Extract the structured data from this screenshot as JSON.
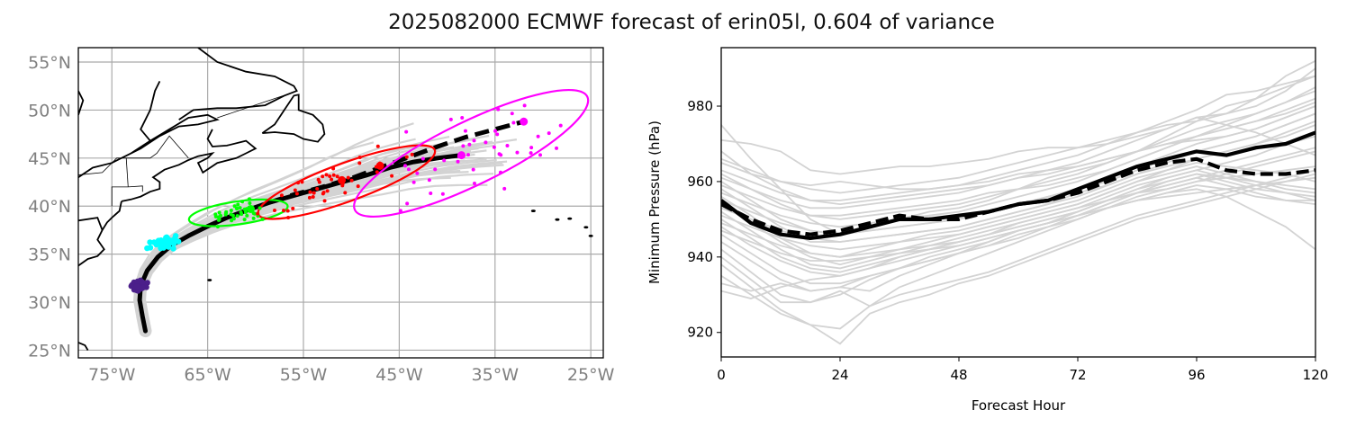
{
  "title": "2025082000 ECMWF forecast of erin05l, 0.604 of variance",
  "chart_data": [
    {
      "type": "scatter",
      "name": "track-map",
      "title": "",
      "xlabel": "",
      "ylabel": "",
      "xlim": [
        -78.5,
        -23.7
      ],
      "ylim": [
        24.2,
        56.5
      ],
      "grid": true,
      "x_ticks": [
        -75,
        -65,
        -55,
        -45,
        -35,
        -25
      ],
      "x_tick_labels": [
        "75°W",
        "65°W",
        "55°W",
        "45°W",
        "35°W",
        "25°W"
      ],
      "y_ticks": [
        25,
        30,
        35,
        40,
        45,
        50,
        55
      ],
      "y_tick_labels": [
        "25°N",
        "30°N",
        "35°N",
        "40°N",
        "45°N",
        "50°N",
        "55°N"
      ],
      "ensemble_mean_track": {
        "style": "solid black",
        "lon": [
          -71.5,
          -71.8,
          -72.1,
          -72.0,
          -71.3,
          -70.2,
          -68.8,
          -67.0,
          -65.0,
          -63.0,
          -60.8,
          -58.5,
          -56.0,
          -53.5,
          -51.0,
          -48.5,
          -46.0,
          -43.5,
          -41.0,
          -38.5
        ],
        "lat": [
          27.0,
          28.5,
          30.2,
          31.7,
          33.3,
          34.7,
          35.9,
          36.9,
          37.9,
          38.8,
          39.6,
          40.4,
          41.1,
          41.8,
          42.5,
          43.2,
          44.0,
          44.6,
          45.0,
          45.3
        ]
      },
      "deterministic_track": {
        "style": "dashed black",
        "lon": [
          -58.5,
          -56.0,
          -53.0,
          -50.0,
          -47.0,
          -44.0,
          -41.0,
          -38.0,
          -35.0,
          -32.0
        ],
        "lat": [
          40.4,
          41.2,
          42.0,
          42.9,
          44.0,
          45.1,
          46.2,
          47.2,
          48.0,
          48.8
        ]
      },
      "ellipses": [
        {
          "name": "green-ellipse",
          "color": "#00ff00",
          "center": [
            -61.8,
            39.3
          ],
          "semi_major_deg": 5.2,
          "semi_minor_deg": 1.2,
          "angle_deg": 8
        },
        {
          "name": "red-ellipse",
          "color": "#ff0000",
          "center": [
            -50.5,
            42.5
          ],
          "semi_major_deg": 9.8,
          "semi_minor_deg": 2.0,
          "angle_deg": 20
        },
        {
          "name": "magenta-ellipse",
          "color": "#ff00ff",
          "center": [
            -37.5,
            45.5
          ],
          "semi_major_deg": 13.5,
          "semi_minor_deg": 3.3,
          "angle_deg": 26
        }
      ],
      "scatter_groups": [
        {
          "name": "purple-positions",
          "color": "#4b1f8a",
          "lon_center": -72.2,
          "lat_center": 31.7,
          "spread": [
            0.8,
            0.5
          ],
          "count": 30
        },
        {
          "name": "cyan-positions",
          "color": "#00ffff",
          "lon_center": -69.5,
          "lat_center": 36.2,
          "spread": [
            1.4,
            0.6
          ],
          "count": 40
        },
        {
          "name": "green-positions",
          "color": "#00ff00",
          "lon_center": -62.0,
          "lat_center": 39.3,
          "spread": [
            3.5,
            1.0
          ],
          "count": 40
        },
        {
          "name": "red-positions",
          "color": "#ff0000",
          "lon_center": -51.0,
          "lat_center": 42.5,
          "spread": [
            7.0,
            1.8
          ],
          "count": 45
        },
        {
          "name": "magenta-positions",
          "color": "#ff00ff",
          "lon_center": -37.0,
          "lat_center": 45.5,
          "spread": [
            10.0,
            4.0
          ],
          "count": 45
        }
      ],
      "highlight_points": [
        {
          "color": "#ff0000",
          "lon": -51.0,
          "lat": 42.7
        },
        {
          "color": "#ff0000",
          "lon": -47.0,
          "lat": 44.2
        },
        {
          "color": "#ff00ff",
          "lon": -38.5,
          "lat": 45.3
        },
        {
          "color": "#ff00ff",
          "lon": -32.0,
          "lat": 48.8
        },
        {
          "color": "#00ff00",
          "lon": -60.5,
          "lat": 39.7
        }
      ]
    },
    {
      "type": "line",
      "name": "pressure-chart",
      "title": "",
      "xlabel": "Forecast Hour",
      "ylabel": "Minimum Pressure (hPa)",
      "xlim": [
        0,
        120
      ],
      "ylim": [
        913.5,
        995.5
      ],
      "grid": false,
      "x_ticks": [
        0,
        24,
        48,
        72,
        96,
        120
      ],
      "y_ticks": [
        920,
        940,
        960,
        980
      ],
      "x": [
        0,
        6,
        12,
        18,
        24,
        30,
        36,
        42,
        48,
        54,
        60,
        66,
        72,
        78,
        84,
        90,
        96,
        102,
        108,
        114,
        120
      ],
      "series": [
        {
          "name": "ensemble-mean",
          "style": "solid black",
          "values": [
            955,
            949,
            946,
            945,
            946,
            948,
            950,
            950,
            951,
            952,
            954,
            955,
            958,
            961,
            964,
            966,
            968,
            967,
            969,
            970,
            973
          ]
        },
        {
          "name": "deterministic",
          "style": "dashed black",
          "values": [
            954,
            950,
            947,
            946,
            947,
            949,
            951,
            950,
            950,
            952,
            954,
            955,
            957,
            960,
            963,
            965,
            966,
            963,
            962,
            962,
            963
          ]
        }
      ],
      "ensemble_members_color": "#d3d3d3",
      "ensemble_members": [
        [
          975,
          966,
          958,
          950,
          946,
          948,
          950,
          952,
          953,
          955,
          958,
          961,
          963,
          965,
          968,
          972,
          976,
          980,
          982,
          985,
          988
        ],
        [
          971,
          970,
          968,
          963,
          962,
          963,
          964,
          964,
          965,
          966,
          968,
          969,
          969,
          970,
          972,
          974,
          977,
          978,
          980,
          984,
          990
        ],
        [
          968,
          962,
          958,
          955,
          954,
          955,
          956,
          957,
          958,
          959,
          961,
          962,
          964,
          966,
          968,
          970,
          972,
          975,
          978,
          981,
          984
        ],
        [
          965,
          962,
          960,
          959,
          960,
          959,
          958,
          958,
          959,
          960,
          962,
          963,
          964,
          966,
          968,
          970,
          971,
          972,
          974,
          977,
          980
        ],
        [
          962,
          958,
          954,
          951,
          951,
          952,
          953,
          954,
          955,
          957,
          958,
          959,
          961,
          963,
          966,
          969,
          972,
          974,
          976,
          978,
          981
        ],
        [
          960,
          955,
          950,
          947,
          946,
          947,
          948,
          949,
          950,
          952,
          954,
          956,
          958,
          960,
          963,
          966,
          968,
          970,
          972,
          975,
          978
        ],
        [
          958,
          953,
          948,
          944,
          944,
          945,
          946,
          947,
          948,
          950,
          952,
          954,
          957,
          959,
          962,
          964,
          966,
          968,
          970,
          972,
          975
        ],
        [
          956,
          951,
          945,
          941,
          940,
          942,
          944,
          946,
          947,
          949,
          951,
          953,
          955,
          958,
          961,
          963,
          965,
          964,
          963,
          962,
          960
        ],
        [
          954,
          949,
          944,
          940,
          938,
          940,
          942,
          944,
          946,
          948,
          950,
          952,
          954,
          957,
          960,
          962,
          964,
          962,
          960,
          958,
          957
        ],
        [
          952,
          947,
          942,
          938,
          937,
          939,
          941,
          943,
          945,
          947,
          949,
          951,
          953,
          956,
          959,
          961,
          963,
          965,
          967,
          970,
          972
        ],
        [
          950,
          945,
          940,
          937,
          936,
          938,
          940,
          942,
          944,
          946,
          948,
          950,
          952,
          955,
          958,
          960,
          962,
          961,
          960,
          959,
          958
        ],
        [
          948,
          943,
          939,
          936,
          935,
          937,
          939,
          941,
          943,
          945,
          947,
          949,
          951,
          954,
          957,
          959,
          961,
          963,
          965,
          967,
          969
        ],
        [
          946,
          941,
          936,
          933,
          933,
          935,
          937,
          939,
          941,
          943,
          945,
          948,
          950,
          953,
          956,
          958,
          960,
          962,
          964,
          966,
          968
        ],
        [
          944,
          939,
          934,
          931,
          932,
          935,
          937,
          939,
          941,
          943,
          946,
          948,
          951,
          953,
          955,
          957,
          959,
          958,
          956,
          955,
          955
        ],
        [
          942,
          936,
          930,
          928,
          930,
          934,
          937,
          940,
          942,
          944,
          947,
          949,
          952,
          955,
          957,
          960,
          962,
          960,
          958,
          957,
          956
        ],
        [
          940,
          934,
          928,
          928,
          931,
          927,
          932,
          935,
          938,
          941,
          944,
          947,
          950,
          953,
          955,
          957,
          958,
          956,
          952,
          948,
          942
        ],
        [
          938,
          932,
          926,
          922,
          921,
          927,
          930,
          932,
          934,
          936,
          939,
          942,
          945,
          948,
          951,
          953,
          955,
          957,
          959,
          961,
          963
        ],
        [
          935,
          930,
          925,
          922,
          917,
          925,
          928,
          930,
          933,
          935,
          938,
          941,
          944,
          947,
          950,
          952,
          954,
          956,
          958,
          960,
          962
        ],
        [
          933,
          931,
          933,
          931,
          932,
          931,
          935,
          938,
          941,
          944,
          947,
          949,
          951,
          953,
          955,
          956,
          957,
          958,
          959,
          960,
          961
        ],
        [
          931,
          929,
          932,
          934,
          935,
          937,
          940,
          942,
          944,
          946,
          949,
          951,
          953,
          955,
          957,
          958,
          960,
          961,
          962,
          963,
          964
        ],
        [
          963,
          960,
          957,
          955,
          955,
          956,
          957,
          958,
          959,
          961,
          963,
          965,
          967,
          970,
          973,
          976,
          979,
          983,
          984,
          986,
          988
        ],
        [
          959,
          956,
          953,
          951,
          950,
          951,
          952,
          953,
          954,
          956,
          958,
          960,
          962,
          965,
          968,
          971,
          974,
          976,
          978,
          981,
          985
        ],
        [
          957,
          954,
          951,
          949,
          948,
          949,
          950,
          951,
          952,
          954,
          956,
          958,
          960,
          963,
          966,
          969,
          972,
          974,
          976,
          979,
          982
        ],
        [
          955,
          952,
          949,
          947,
          946,
          947,
          948,
          949,
          950,
          952,
          954,
          956,
          958,
          961,
          964,
          967,
          970,
          972,
          974,
          977,
          980
        ],
        [
          953,
          950,
          947,
          945,
          944,
          945,
          946,
          947,
          948,
          950,
          952,
          954,
          956,
          959,
          962,
          965,
          968,
          970,
          972,
          975,
          978
        ],
        [
          951,
          948,
          945,
          943,
          942,
          943,
          944,
          945,
          946,
          948,
          950,
          952,
          954,
          957,
          960,
          963,
          966,
          968,
          970,
          973,
          976
        ],
        [
          949,
          946,
          943,
          941,
          940,
          941,
          942,
          943,
          944,
          946,
          948,
          950,
          952,
          955,
          958,
          961,
          963,
          961,
          959,
          957,
          955
        ],
        [
          947,
          944,
          941,
          939,
          939,
          940,
          941,
          942,
          943,
          945,
          947,
          949,
          951,
          954,
          957,
          959,
          961,
          959,
          957,
          955,
          954
        ],
        [
          961,
          958,
          955,
          953,
          953,
          954,
          955,
          956,
          957,
          959,
          961,
          963,
          965,
          968,
          971,
          974,
          977,
          975,
          973,
          970,
          967
        ],
        [
          966,
          963,
          960,
          958,
          957,
          958,
          959,
          960,
          961,
          963,
          965,
          967,
          969,
          971,
          973,
          975,
          976,
          978,
          982,
          988,
          992
        ]
      ]
    }
  ]
}
